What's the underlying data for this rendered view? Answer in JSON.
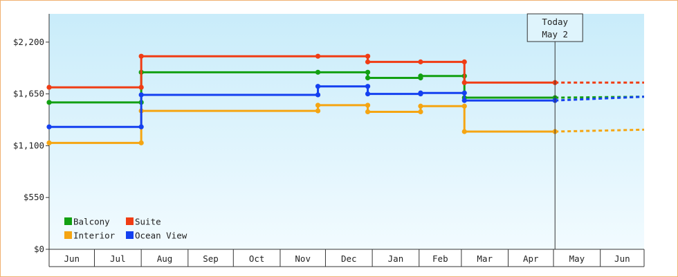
{
  "chart_data": {
    "type": "line",
    "step": true,
    "x_unit": "date",
    "x_start": "2022-06-01",
    "x_end": "2023-06-30",
    "ylim": [
      0,
      2500
    ],
    "yticks": [
      {
        "value": 0,
        "label": "$0"
      },
      {
        "value": 550,
        "label": "$550"
      },
      {
        "value": 1100,
        "label": "$1,100"
      },
      {
        "value": 1650,
        "label": "$1,650"
      },
      {
        "value": 2200,
        "label": "$2,200"
      }
    ],
    "months": [
      {
        "label": "Jun",
        "start": "2022-06-01"
      },
      {
        "label": "Jul",
        "start": "2022-07-01"
      },
      {
        "label": "Aug",
        "start": "2022-08-01"
      },
      {
        "label": "Sep",
        "start": "2022-09-01"
      },
      {
        "label": "Oct",
        "start": "2022-10-01"
      },
      {
        "label": "Nov",
        "start": "2022-11-01"
      },
      {
        "label": "Dec",
        "start": "2022-12-01"
      },
      {
        "label": "Jan",
        "start": "2023-01-01"
      },
      {
        "label": "Feb",
        "start": "2023-02-01"
      },
      {
        "label": "Mar",
        "start": "2023-03-01"
      },
      {
        "label": "Apr",
        "start": "2023-04-01"
      },
      {
        "label": "May",
        "start": "2023-05-01"
      },
      {
        "label": "Jun",
        "start": "2023-06-01"
      }
    ],
    "today": {
      "date": "2023-05-02",
      "label_line1": "Today",
      "label_line2": "May 2"
    },
    "legend_position": "bottom-left",
    "series": [
      {
        "name": "Balcony",
        "color": "#12a012",
        "points": [
          [
            "2022-06-01",
            1560
          ],
          [
            "2022-08-01",
            1560
          ],
          [
            "2022-08-01",
            1880
          ],
          [
            "2022-11-26",
            1880
          ],
          [
            "2022-12-29",
            1880
          ],
          [
            "2022-12-29",
            1820
          ],
          [
            "2023-02-02",
            1820
          ],
          [
            "2023-02-02",
            1840
          ],
          [
            "2023-03-03",
            1840
          ],
          [
            "2023-03-03",
            1610
          ],
          [
            "2023-05-02",
            1610
          ]
        ],
        "projection": [
          [
            "2023-05-02",
            1610
          ],
          [
            "2023-06-30",
            1620
          ]
        ]
      },
      {
        "name": "Suite",
        "color": "#f03c14",
        "points": [
          [
            "2022-06-01",
            1720
          ],
          [
            "2022-08-01",
            1720
          ],
          [
            "2022-08-01",
            2050
          ],
          [
            "2022-11-26",
            2050
          ],
          [
            "2022-12-29",
            2050
          ],
          [
            "2022-12-29",
            1990
          ],
          [
            "2023-02-02",
            1990
          ],
          [
            "2023-03-03",
            1990
          ],
          [
            "2023-03-03",
            1770
          ],
          [
            "2023-05-02",
            1770
          ]
        ],
        "projection": [
          [
            "2023-05-02",
            1770
          ],
          [
            "2023-06-30",
            1770
          ]
        ]
      },
      {
        "name": "Interior",
        "color": "#f5a512",
        "points": [
          [
            "2022-06-01",
            1130
          ],
          [
            "2022-08-01",
            1130
          ],
          [
            "2022-08-01",
            1470
          ],
          [
            "2022-11-26",
            1470
          ],
          [
            "2022-11-26",
            1530
          ],
          [
            "2022-12-29",
            1530
          ],
          [
            "2022-12-29",
            1460
          ],
          [
            "2023-02-02",
            1460
          ],
          [
            "2023-02-02",
            1520
          ],
          [
            "2023-03-03",
            1520
          ],
          [
            "2023-03-03",
            1250
          ],
          [
            "2023-05-02",
            1250
          ]
        ],
        "projection": [
          [
            "2023-05-02",
            1250
          ],
          [
            "2023-06-30",
            1270
          ]
        ]
      },
      {
        "name": "Ocean View",
        "color": "#1440f0",
        "points": [
          [
            "2022-06-01",
            1300
          ],
          [
            "2022-08-01",
            1300
          ],
          [
            "2022-08-01",
            1640
          ],
          [
            "2022-11-26",
            1640
          ],
          [
            "2022-11-26",
            1730
          ],
          [
            "2022-12-29",
            1730
          ],
          [
            "2022-12-29",
            1650
          ],
          [
            "2023-02-02",
            1650
          ],
          [
            "2023-02-02",
            1660
          ],
          [
            "2023-03-03",
            1660
          ],
          [
            "2023-03-03",
            1580
          ],
          [
            "2023-05-02",
            1580
          ]
        ],
        "projection": [
          [
            "2023-05-02",
            1580
          ],
          [
            "2023-06-30",
            1620
          ]
        ]
      }
    ]
  }
}
